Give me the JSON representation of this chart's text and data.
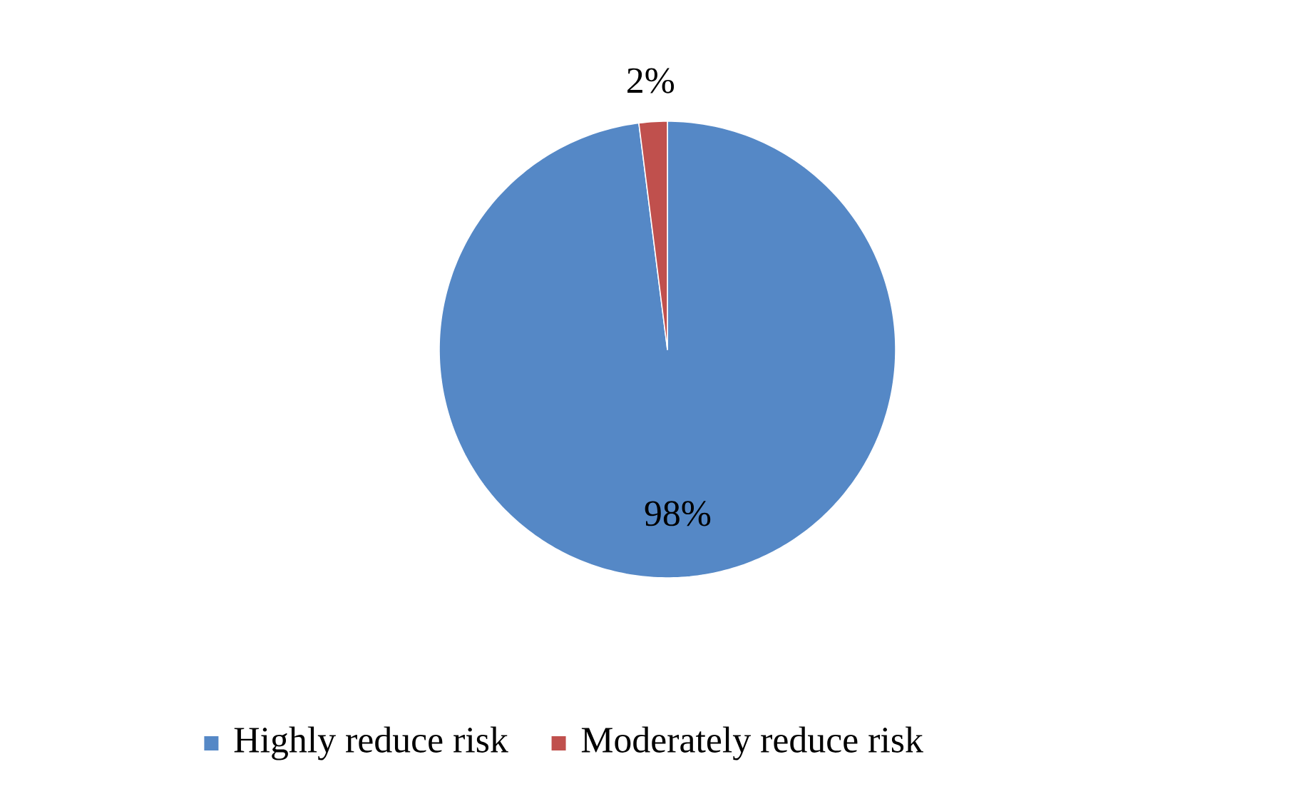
{
  "chart_data": {
    "type": "pie",
    "categories": [
      "Highly reduce risk",
      "Moderately reduce risk"
    ],
    "values": [
      98,
      2
    ],
    "colors": [
      "#5588c6",
      "#c0504d"
    ],
    "value_labels": [
      "98%",
      "2%"
    ],
    "legend": "bottom"
  }
}
